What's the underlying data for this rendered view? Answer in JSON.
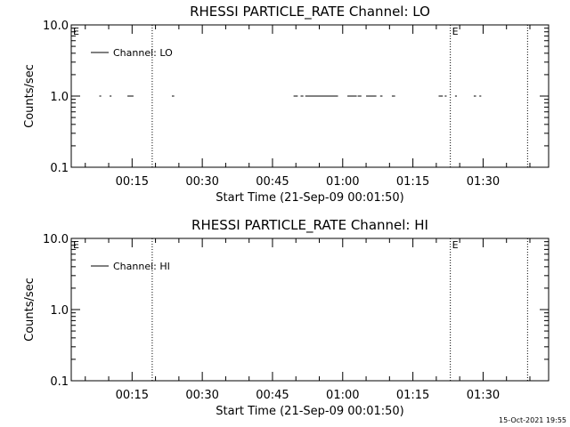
{
  "footer": {
    "timestamp": "15-Oct-2021 19:55"
  },
  "chart_data": [
    {
      "type": "line",
      "title": "RHESSI PARTICLE_RATE Channel: LO",
      "xlabel": "Start Time (21-Sep-09 00:01:50)",
      "ylabel": "Counts/sec",
      "yscale": "log",
      "ylim": [
        0.1,
        10.0
      ],
      "yticks": [
        "10.0",
        "1.0",
        "0.1"
      ],
      "xlim_minutes": [
        2,
        104
      ],
      "xtick_labels": [
        "00:15",
        "00:30",
        "00:45",
        "01:00",
        "01:15",
        "01:30"
      ],
      "legend": {
        "entry": "Channel: LO",
        "placement": "top-left"
      },
      "event_markers": [
        {
          "x_minutes": 19.3,
          "label": ""
        },
        {
          "x_minutes": 83.0,
          "label": "E"
        },
        {
          "x_minutes": 99.5,
          "label": ""
        }
      ],
      "corner_label": "E",
      "series": [
        {
          "name": "Channel: LO",
          "value": 1.0,
          "segments": [
            [
              8.0,
              8.4
            ],
            [
              10.2,
              10.6
            ],
            [
              14.0,
              15.3
            ],
            [
              23.5,
              24.0
            ],
            [
              49.5,
              50.4
            ],
            [
              51.0,
              51.6
            ],
            [
              52.0,
              59.0
            ],
            [
              61.0,
              63.0
            ],
            [
              63.2,
              64.0
            ],
            [
              65.0,
              67.2
            ],
            [
              68.0,
              68.5
            ],
            [
              70.5,
              71.2
            ],
            [
              80.5,
              81.4
            ],
            [
              81.8,
              82.2
            ],
            [
              84.0,
              84.4
            ],
            [
              88.0,
              88.5
            ],
            [
              89.2,
              89.6
            ]
          ]
        }
      ]
    },
    {
      "type": "line",
      "title": "RHESSI PARTICLE_RATE Channel: HI",
      "xlabel": "Start Time (21-Sep-09 00:01:50)",
      "ylabel": "Counts/sec",
      "yscale": "log",
      "ylim": [
        0.1,
        10.0
      ],
      "yticks": [
        "10.0",
        "1.0",
        "0.1"
      ],
      "xlim_minutes": [
        2,
        104
      ],
      "xtick_labels": [
        "00:15",
        "00:30",
        "00:45",
        "01:00",
        "01:15",
        "01:30"
      ],
      "legend": {
        "entry": "Channel: HI",
        "placement": "top-left"
      },
      "event_markers": [
        {
          "x_minutes": 19.3,
          "label": ""
        },
        {
          "x_minutes": 83.0,
          "label": "E"
        },
        {
          "x_minutes": 99.5,
          "label": ""
        }
      ],
      "corner_label": "E",
      "series": [
        {
          "name": "Channel: HI",
          "value": 1.0,
          "segments": []
        }
      ]
    }
  ]
}
